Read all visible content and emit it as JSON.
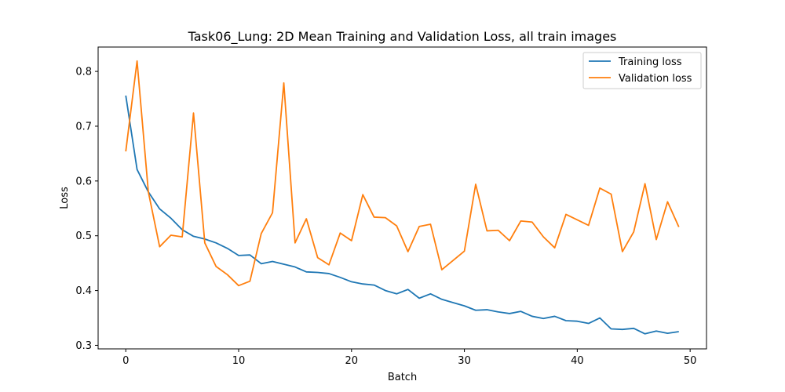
{
  "chart_data": {
    "type": "line",
    "title": "Task06_Lung: 2D Mean Training and Validation Loss, all train images",
    "xlabel": "Batch",
    "ylabel": "Loss",
    "xlim": [
      -2.45,
      51.45
    ],
    "ylim": [
      0.2935,
      0.8445
    ],
    "xticks": [
      0,
      10,
      20,
      30,
      40,
      50
    ],
    "yticks": [
      0.3,
      0.4,
      0.5,
      0.6,
      0.7,
      0.8
    ],
    "xtick_labels": [
      "0",
      "10",
      "20",
      "30",
      "40",
      "50"
    ],
    "ytick_labels": [
      "0.3",
      "0.4",
      "0.5",
      "0.6",
      "0.7",
      "0.8"
    ],
    "grid": false,
    "legend_position": "top-right",
    "x": [
      0,
      1,
      2,
      3,
      4,
      5,
      6,
      7,
      8,
      9,
      10,
      11,
      12,
      13,
      14,
      15,
      16,
      17,
      18,
      19,
      20,
      21,
      22,
      23,
      24,
      25,
      26,
      27,
      28,
      29,
      30,
      31,
      32,
      33,
      34,
      35,
      36,
      37,
      38,
      39,
      40,
      41,
      42,
      43,
      44,
      45,
      46,
      47,
      48,
      49
    ],
    "series": [
      {
        "name": "Training loss",
        "color": "#1f77b4",
        "values": [
          0.756,
          0.621,
          0.58,
          0.549,
          0.532,
          0.511,
          0.499,
          0.494,
          0.487,
          0.477,
          0.464,
          0.465,
          0.449,
          0.453,
          0.448,
          0.443,
          0.434,
          0.433,
          0.431,
          0.424,
          0.416,
          0.412,
          0.41,
          0.4,
          0.394,
          0.402,
          0.386,
          0.394,
          0.384,
          0.378,
          0.372,
          0.364,
          0.365,
          0.361,
          0.358,
          0.362,
          0.353,
          0.349,
          0.353,
          0.345,
          0.344,
          0.34,
          0.35,
          0.33,
          0.329,
          0.331,
          0.321,
          0.326,
          0.322,
          0.325
        ]
      },
      {
        "name": "Validation loss",
        "color": "#ff7f0e",
        "values": [
          0.654,
          0.819,
          0.58,
          0.48,
          0.501,
          0.498,
          0.724,
          0.487,
          0.444,
          0.429,
          0.409,
          0.417,
          0.504,
          0.542,
          0.779,
          0.487,
          0.531,
          0.46,
          0.447,
          0.505,
          0.491,
          0.575,
          0.534,
          0.533,
          0.518,
          0.471,
          0.517,
          0.521,
          0.438,
          0.455,
          0.472,
          0.594,
          0.509,
          0.51,
          0.491,
          0.527,
          0.525,
          0.498,
          0.478,
          0.539,
          0.529,
          0.519,
          0.587,
          0.576,
          0.471,
          0.507,
          0.595,
          0.493,
          0.562,
          0.516
        ]
      }
    ]
  }
}
